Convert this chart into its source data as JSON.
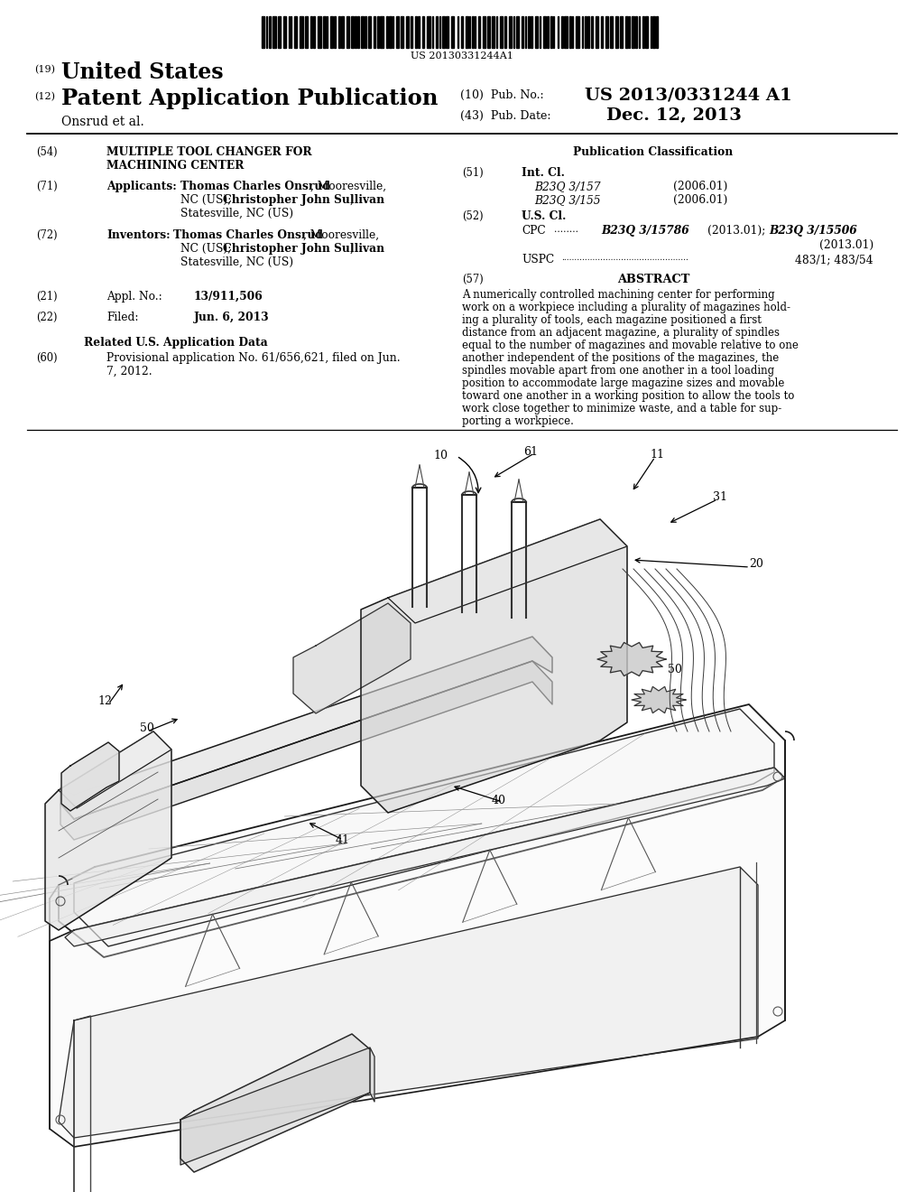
{
  "bg_color": "#ffffff",
  "barcode_text": "US 20130331244A1",
  "header_19": "(19)",
  "header_19_text": "United States",
  "header_12": "(12)",
  "header_12_text": "Patent Application Publication",
  "author": "Onsrud et al.",
  "pub_num_label": "(10)  Pub. No.:",
  "pub_num_value": "US 2013/0331244 A1",
  "pub_date_label": "(43)  Pub. Date:",
  "pub_date_value": "Dec. 12, 2013",
  "title_num": "(54)",
  "title_line1": "MULTIPLE TOOL CHANGER FOR",
  "title_line2": "MACHINING CENTER",
  "appl_num71": "(71)",
  "appl_label71": "Applicants:",
  "appl_name1_bold": "Thomas Charles Onsrud",
  "appl_name1_normal": ", Mooresville,",
  "appl_name1_line2": "NC (US); ",
  "appl_name2_bold": "Christopher John Sullivan",
  "appl_name2_normal": ",",
  "appl_name2_line3": "Statesville, NC (US)",
  "inv_num": "(72)",
  "inv_label": "Inventors:",
  "inv_name1_bold": "Thomas Charles Onsrud",
  "inv_name1_normal": ", Mooresville,",
  "inv_name1_line2": "NC (US); ",
  "inv_name2_bold": "Christopher John Sullivan",
  "inv_name2_normal": ",",
  "inv_name2_line3": "Statesville, NC (US)",
  "appl_no_num": "(21)",
  "appl_no_label": "Appl. No.:",
  "appl_no_value": "13/911,506",
  "filed_num": "(22)",
  "filed_label": "Filed:",
  "filed_value": "Jun. 6, 2013",
  "related_title": "Related U.S. Application Data",
  "related_num": "(60)",
  "related_text_line1": "Provisional application No. 61/656,621, filed on Jun.",
  "related_text_line2": "7, 2012.",
  "pub_class_title": "Publication Classification",
  "int_cl_num": "(51)",
  "int_cl_label": "Int. Cl.",
  "int_cl_1": "B23Q 3/157",
  "int_cl_1_date": "(2006.01)",
  "int_cl_2": "B23Q 3/155",
  "int_cl_2_date": "(2006.01)",
  "us_cl_num": "(52)",
  "us_cl_label": "U.S. Cl.",
  "cpc_label": "CPC",
  "cpc_dots": "........",
  "cpc_val1": "B23Q 3/15786",
  "cpc_date1": "(2013.01);",
  "cpc_val2": "B23Q 3/15506",
  "cpc_date2": "(2013.01)",
  "uspc_label": "USPC",
  "uspc_dots": ".................................................",
  "uspc_value": "483/1; 483/54",
  "abstract_num": "(57)",
  "abstract_title": "ABSTRACT",
  "abstract_lines": [
    "A numerically controlled machining center for performing",
    "work on a workpiece including a plurality of magazines hold-",
    "ing a plurality of tools, each magazine positioned a first",
    "distance from an adjacent magazine, a plurality of spindles",
    "equal to the number of magazines and movable relative to one",
    "another independent of the positions of the magazines, the",
    "spindles movable apart from one another in a tool loading",
    "position to accommodate large magazine sizes and movable",
    "toward one another in a working position to allow the tools to",
    "work close together to minimize waste, and a table for sup-",
    "porting a workpiece."
  ]
}
